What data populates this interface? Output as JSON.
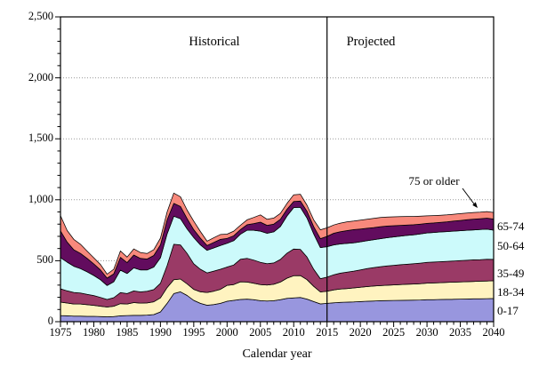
{
  "chart_data": {
    "type": "area",
    "stacked": true,
    "title": "",
    "xlabel": "Calendar year",
    "ylabel": "",
    "x_start": 1975,
    "x_end": 2040,
    "ylim": [
      0,
      2500
    ],
    "grid": "horizontal-dotted",
    "divider_year": 2015,
    "y_major_ticks": [
      0,
      500,
      1000,
      1500,
      2000,
      2500
    ],
    "y_tick_labels": [
      "0",
      "500",
      "1,000",
      "1,500",
      "2,000",
      "2,500"
    ],
    "y_minor_step": 100,
    "x_major_ticks": [
      1975,
      1980,
      1985,
      1990,
      1995,
      2000,
      2005,
      2010,
      2015,
      2020,
      2025,
      2030,
      2035,
      2040
    ],
    "x_tick_labels": [
      "1975",
      "1980",
      "1985",
      "1990",
      "1995",
      "2000",
      "2005",
      "2010",
      "2015",
      "2020",
      "2025",
      "2030",
      "2035",
      "2040"
    ],
    "x_minor_step": 1,
    "annotations": {
      "historical": "Historical",
      "projected": "Projected",
      "oldest": "75 or older"
    },
    "age_labels": [
      "65-74",
      "50-64",
      "35-49",
      "18-34",
      "0-17"
    ],
    "colors": {
      "area_0_17": "#9896DE",
      "area_18_34": "#FFF3C0",
      "area_35_49": "#9A3A66",
      "area_50_64": "#CCFAFB",
      "area_65_74": "#620C5E",
      "area_75_plus": "#F8897C",
      "band_outline": "#000000",
      "gridline": "#999999",
      "axis": "#000000"
    },
    "series": [
      {
        "name": "0-17",
        "values": [
          50,
          48,
          45,
          45,
          44,
          44,
          42,
          40,
          42,
          48,
          50,
          52,
          52,
          54,
          58,
          80,
          150,
          230,
          245,
          215,
          175,
          150,
          135,
          140,
          150,
          168,
          175,
          182,
          185,
          180,
          172,
          170,
          172,
          180,
          192,
          195,
          198,
          185,
          165,
          146,
          150,
          155,
          158,
          160,
          162,
          165,
          168,
          170,
          172,
          173,
          174,
          175,
          176,
          177,
          178,
          180,
          181,
          182,
          183,
          184,
          185,
          186,
          187,
          188,
          189,
          190
        ]
      },
      {
        "name": "18-34",
        "values": [
          110,
          105,
          100,
          100,
          95,
          90,
          85,
          80,
          85,
          100,
          95,
          105,
          100,
          100,
          105,
          115,
          130,
          115,
          105,
          95,
          90,
          95,
          105,
          110,
          115,
          130,
          130,
          145,
          140,
          135,
          133,
          130,
          135,
          145,
          165,
          182,
          180,
          160,
          125,
          98,
          100,
          105,
          110,
          112,
          115,
          118,
          120,
          122,
          124,
          126,
          128,
          130,
          131,
          132,
          134,
          136,
          137,
          138,
          139,
          140,
          141,
          142,
          143,
          144,
          145,
          146
        ]
      },
      {
        "name": "35-49",
        "values": [
          110,
          100,
          95,
          90,
          85,
          80,
          72,
          62,
          70,
          90,
          85,
          95,
          92,
          95,
          100,
          120,
          180,
          290,
          280,
          250,
          210,
          185,
          160,
          165,
          165,
          150,
          160,
          185,
          195,
          190,
          182,
          175,
          175,
          185,
          205,
          219,
          215,
          185,
          140,
          109,
          115,
          125,
          130,
          135,
          138,
          142,
          148,
          152,
          155,
          158,
          160,
          162,
          164,
          166,
          168,
          170,
          171,
          172,
          173,
          174,
          175,
          176,
          177,
          177,
          178,
          175
        ]
      },
      {
        "name": "50-64",
        "values": [
          255,
          235,
          215,
          200,
          185,
          165,
          145,
          115,
          130,
          185,
          165,
          190,
          180,
          175,
          185,
          210,
          260,
          230,
          215,
          200,
          215,
          200,
          185,
          190,
          195,
          195,
          200,
          205,
          230,
          245,
          256,
          250,
          255,
          270,
          305,
          340,
          345,
          320,
          290,
          255,
          250,
          245,
          240,
          235,
          232,
          230,
          228,
          228,
          230,
          232,
          233,
          235,
          237,
          238,
          240,
          242,
          243,
          244,
          244,
          245,
          245,
          246,
          246,
          247,
          247,
          240
        ]
      },
      {
        "name": "65-74",
        "values": [
          220,
          165,
          135,
          125,
          110,
          95,
          80,
          60,
          65,
          105,
          90,
          105,
          95,
          90,
          95,
          105,
          115,
          105,
          100,
          85,
          65,
          55,
          40,
          45,
          50,
          40,
          40,
          38,
          45,
          55,
          73,
          65,
          63,
          60,
          55,
          50,
          52,
          55,
          60,
          73,
          85,
          95,
          100,
          105,
          108,
          105,
          102,
          100,
          98,
          95,
          92,
          88,
          85,
          82,
          80,
          78,
          78,
          79,
          80,
          82,
          84,
          86,
          88,
          89,
          90,
          91
        ]
      },
      {
        "name": "75 or older",
        "values": [
          125,
          95,
          85,
          75,
          60,
          50,
          45,
          33,
          38,
          52,
          45,
          50,
          48,
          45,
          48,
          55,
          65,
          85,
          80,
          70,
          70,
          55,
          35,
          38,
          40,
          35,
          38,
          36,
          40,
          50,
          60,
          50,
          50,
          48,
          48,
          55,
          55,
          50,
          55,
          73,
          70,
          68,
          70,
          72,
          70,
          72,
          74,
          76,
          75,
          74,
          73,
          72,
          70,
          68,
          65,
          62,
          60,
          58,
          57,
          56,
          56,
          55,
          55,
          54,
          54,
          54
        ]
      }
    ]
  }
}
